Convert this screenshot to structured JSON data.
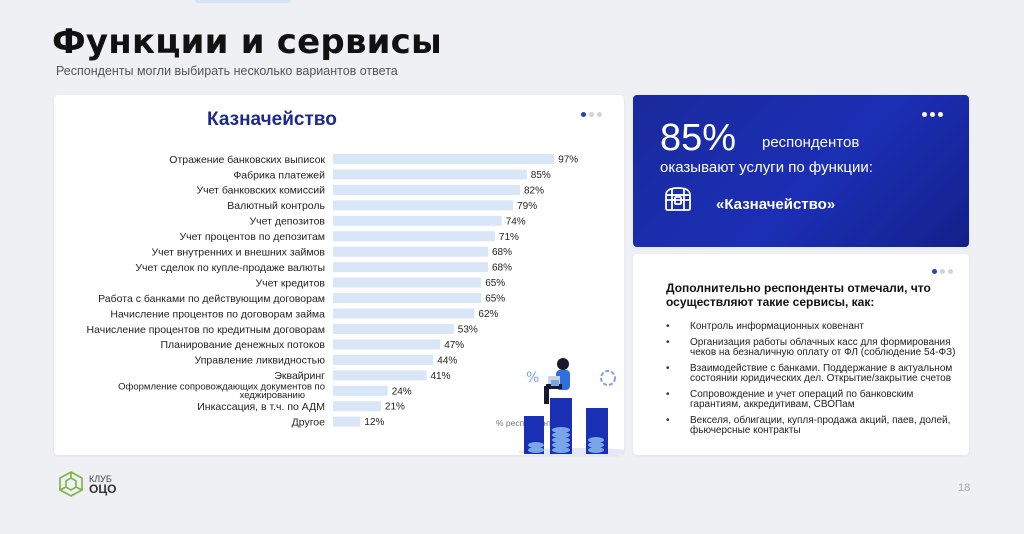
{
  "page": {
    "title": "Функции и сервисы",
    "subtitle": "Респонденты могли выбирать несколько вариантов ответа",
    "page_number": "18"
  },
  "logo": {
    "line1": "КЛУБ",
    "line2": "ОЦО"
  },
  "chart_data": {
    "type": "bar",
    "orientation": "horizontal",
    "title": "Казначейство",
    "xlabel": "% респондентов",
    "xlim": [
      0,
      100
    ],
    "categories": [
      "Отражение банковских выписок",
      "Фабрика платежей",
      "Учет банковских комиссий",
      "Валютный контроль",
      "Учет депозитов",
      "Учет процентов по депозитам",
      "Учет внутренних и внешних займов",
      "Учет сделок по купле-продаже валюты",
      "Учет кредитов",
      "Работа с банками по действующим договорам",
      "Начисление процентов по договорам займа",
      "Начисление процентов по кредитным договорам",
      "Планирование денежных потоков",
      "Управление ликвидностью",
      "Эквайринг",
      "Оформление сопровождающих документов по хеджированию",
      "Инкассация, в т.ч. по АДМ",
      "Другое"
    ],
    "values": [
      97,
      85,
      82,
      79,
      74,
      71,
      68,
      68,
      65,
      65,
      62,
      53,
      47,
      44,
      41,
      24,
      21,
      12
    ],
    "value_labels": [
      "97%",
      "85%",
      "82%",
      "79%",
      "74%",
      "71%",
      "68%",
      "68%",
      "65%",
      "65%",
      "62%",
      "53%",
      "47%",
      "44%",
      "41%",
      "24%",
      "21%",
      "12%"
    ],
    "bar_color": "#d9e6f8"
  },
  "highlight": {
    "percent": "85%",
    "word": "респондентов",
    "line2": "оказывают услуги по функции:",
    "function_name": "«Казначейство»",
    "icon": "treasure-chest-icon"
  },
  "extra": {
    "heading": "Дополнительно респонденты отмечали, что осуществляют такие сервисы, как:",
    "items": [
      "Контроль информационных ковенант",
      "Организация работы облачных касс для формирования чеков на безналичную оплату от ФЛ (соблюдение 54-ФЗ)",
      "Взаимодействие с банками. Поддержание в актуальном состоянии юридических дел. Открытие/закрытие счетов",
      "Сопровождение и учет операций по банковским гарантиям, аккредитивам, СВОПам",
      "Векселя, облигации, купля-продажа акций, паев, долей, фьючерсные контракты"
    ]
  },
  "colors": {
    "accent": "#1b2fb5",
    "title_blue": "#1b2a8c",
    "bar": "#d9e6f8"
  }
}
